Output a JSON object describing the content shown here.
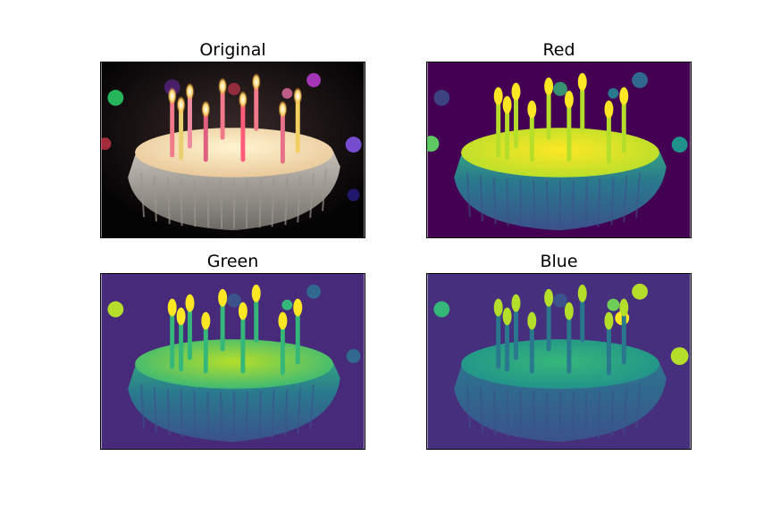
{
  "figure": {
    "panels": [
      {
        "title": "Original",
        "channel": "rgb"
      },
      {
        "title": "Red",
        "channel": "red"
      },
      {
        "title": "Green",
        "channel": "green"
      },
      {
        "title": "Blue",
        "channel": "blue"
      }
    ]
  },
  "colors": {
    "original_bg": "#0d0a0c",
    "viridis_low": "#440154",
    "viridis_mid": "#2a788e",
    "viridis_high": "#fde725"
  }
}
